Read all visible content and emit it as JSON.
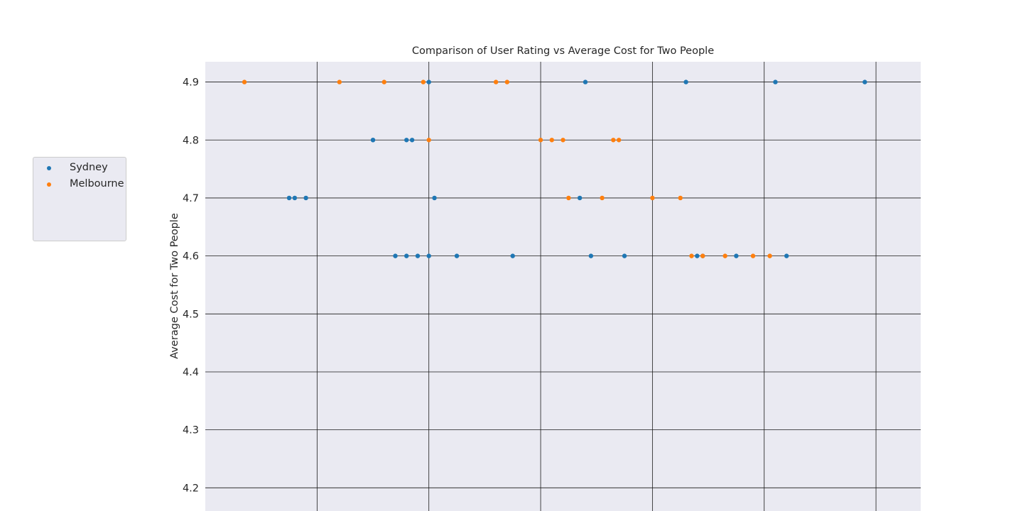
{
  "chart_data": {
    "type": "scatter",
    "title": "Comparison of User Rating vs Average Cost for Two People",
    "xlabel": "",
    "ylabel": "Average Cost for Two People",
    "xlim": [
      0,
      128
    ],
    "ylim": [
      4.16,
      4.935
    ],
    "x_ticks": [
      20,
      40,
      60,
      80,
      100,
      120
    ],
    "y_ticks": [
      4.2,
      4.3,
      4.4,
      4.5,
      4.6,
      4.7,
      4.8,
      4.9
    ],
    "y_tick_labels": [
      "4.2",
      "4.3",
      "4.4",
      "4.5",
      "4.6",
      "4.7",
      "4.8",
      "4.9"
    ],
    "grid": true,
    "legend_position": "left",
    "series": [
      {
        "name": "Sydney",
        "color": "#1f77b4",
        "x": [
          40,
          68,
          86,
          118,
          102,
          36,
          37,
          30,
          30,
          16,
          15,
          41,
          67,
          18,
          34,
          36,
          38,
          40,
          45,
          55,
          69,
          75,
          88,
          89,
          95,
          104
        ],
        "y": [
          4.9,
          4.9,
          4.9,
          4.9,
          4.9,
          4.8,
          4.8,
          4.8,
          4.8,
          4.7,
          4.7,
          4.7,
          4.7,
          4.7,
          4.6,
          4.6,
          4.6,
          4.6,
          4.6,
          4.6,
          4.6,
          4.6,
          4.6,
          4.6,
          4.6,
          4.6
        ]
      },
      {
        "name": "Melbourne",
        "color": "#ff7f0e",
        "x": [
          7,
          24,
          32,
          39,
          52,
          54,
          40,
          60,
          62,
          64,
          73,
          74,
          65,
          71,
          80,
          85,
          87,
          89,
          93,
          98,
          101
        ],
        "y": [
          4.9,
          4.9,
          4.9,
          4.9,
          4.9,
          4.9,
          4.8,
          4.8,
          4.8,
          4.8,
          4.8,
          4.8,
          4.7,
          4.7,
          4.7,
          4.7,
          4.6,
          4.6,
          4.6,
          4.6,
          4.6
        ],
        "note": ""
      }
    ]
  }
}
